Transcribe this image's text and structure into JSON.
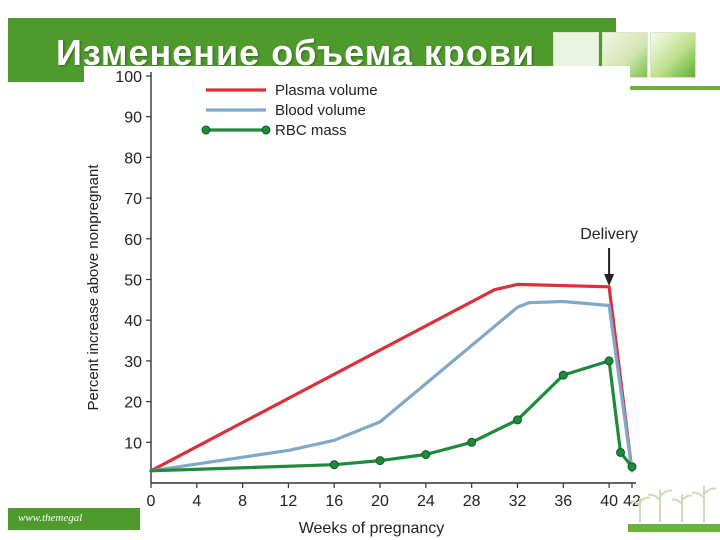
{
  "slide": {
    "title": "Изменение объема крови",
    "footer": "www.themegal"
  },
  "colors": {
    "header_green": "#4f9a2d",
    "plasma": "#d9303c",
    "blood": "#7fa8c9",
    "rbc": "#1f8a3b"
  },
  "icons": [
    "plant-thumbnail-icon",
    "sprout-thumbnail-icon",
    "leaf-thumbnail-icon",
    "plants-decoration-icon"
  ],
  "chart_data": {
    "type": "line",
    "xlabel": "Weeks of pregnancy",
    "ylabel": "Percent increase above nonpregnant",
    "xlim": [
      0,
      42
    ],
    "ylim": [
      0,
      100
    ],
    "x_ticks": [
      0,
      4,
      8,
      12,
      16,
      20,
      24,
      28,
      32,
      36,
      40,
      42
    ],
    "y_ticks": [
      10,
      20,
      30,
      40,
      50,
      60,
      70,
      80,
      90,
      100
    ],
    "legend_position": "top-left",
    "series": [
      {
        "name": "Plasma volume",
        "color": "#d9303c",
        "markers": false,
        "x": [
          0,
          30,
          32,
          40,
          42
        ],
        "y": [
          3,
          47.5,
          48.8,
          48.2,
          3
        ]
      },
      {
        "name": "Blood volume",
        "color": "#7fa8c9",
        "markers": false,
        "x": [
          0,
          12,
          16,
          20,
          32,
          33,
          36,
          40,
          42
        ],
        "y": [
          3,
          8,
          10.5,
          15,
          43.2,
          44.3,
          44.6,
          43.6,
          3
        ]
      },
      {
        "name": "RBC mass",
        "color": "#1f8a3b",
        "markers": true,
        "x": [
          0,
          16,
          20,
          24,
          28,
          32,
          36,
          40,
          41,
          42
        ],
        "y": [
          3,
          4.5,
          5.5,
          7,
          10,
          15.5,
          26.5,
          30,
          7.5,
          4
        ]
      }
    ],
    "annotations": [
      {
        "text": "Delivery",
        "x": 40,
        "arrow": true
      }
    ]
  }
}
